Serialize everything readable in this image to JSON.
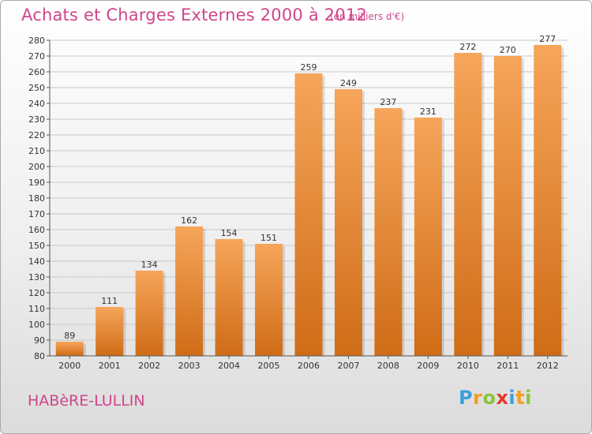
{
  "title": "Achats et Charges Externes 2000 à 2012",
  "subtitle": "(en milliers d'€)",
  "commune": "HABèRE-LULLIN",
  "logo": {
    "letters": [
      "P",
      "r",
      "o",
      "x",
      "i",
      "t",
      "i"
    ],
    "colors": [
      "#3aa0dc",
      "#f39c1f",
      "#8bc43f",
      "#e8372b",
      "#3aa0dc",
      "#f39c1f",
      "#8bc43f"
    ]
  },
  "colors": {
    "title": "#d0458a",
    "bar_top": "#f6a55a",
    "bar_bottom": "#cf6c17",
    "axis": "#555555",
    "grid": "#c8c8c8"
  },
  "chart_data": {
    "type": "bar",
    "title": "Achats et Charges Externes 2000 à 2012",
    "subtitle": "(en milliers d'€)",
    "categories": [
      "2000",
      "2001",
      "2002",
      "2003",
      "2004",
      "2005",
      "2006",
      "2007",
      "2008",
      "2009",
      "2010",
      "2011",
      "2012"
    ],
    "values": [
      89,
      111,
      134,
      162,
      154,
      151,
      259,
      249,
      237,
      231,
      272,
      270,
      277
    ],
    "ylim": [
      80,
      280
    ],
    "yticks": [
      80,
      90,
      100,
      110,
      120,
      130,
      140,
      150,
      160,
      170,
      180,
      190,
      200,
      210,
      220,
      230,
      240,
      250,
      260,
      270,
      280
    ],
    "grid": true,
    "xlabel": "",
    "ylabel": ""
  }
}
